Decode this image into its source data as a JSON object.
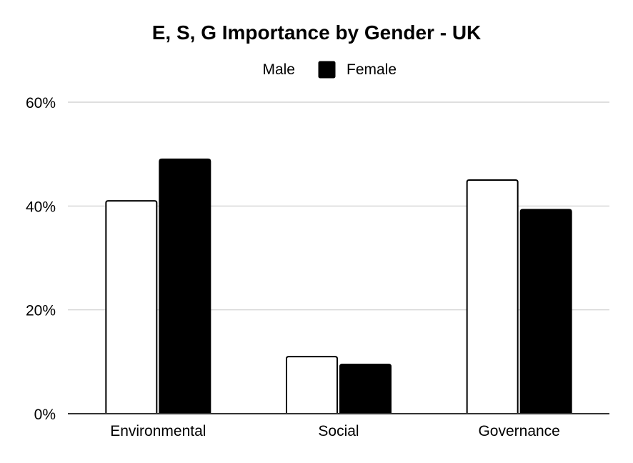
{
  "chart_data": {
    "type": "bar",
    "title": "E, S, G Importance by Gender - UK",
    "xlabel": "",
    "ylabel": "",
    "categories": [
      "Environmental",
      "Social",
      "Governance"
    ],
    "series": [
      {
        "name": "Male",
        "values": [
          41,
          11,
          45
        ],
        "color": "#ffffff",
        "stroke": "#000000"
      },
      {
        "name": "Female",
        "values": [
          49,
          9.5,
          39.3
        ],
        "color": "#000000",
        "stroke": "#000000"
      }
    ],
    "ylim": [
      0,
      60
    ],
    "yticks": [
      {
        "value": 0,
        "label": "0%"
      },
      {
        "value": 20,
        "label": "20%"
      },
      {
        "value": 40,
        "label": "40%"
      },
      {
        "value": 60,
        "label": "60%"
      }
    ],
    "grid": true,
    "legend_position": "top-center",
    "gridline_color": "#cccccc",
    "axis_color": "#333333"
  }
}
